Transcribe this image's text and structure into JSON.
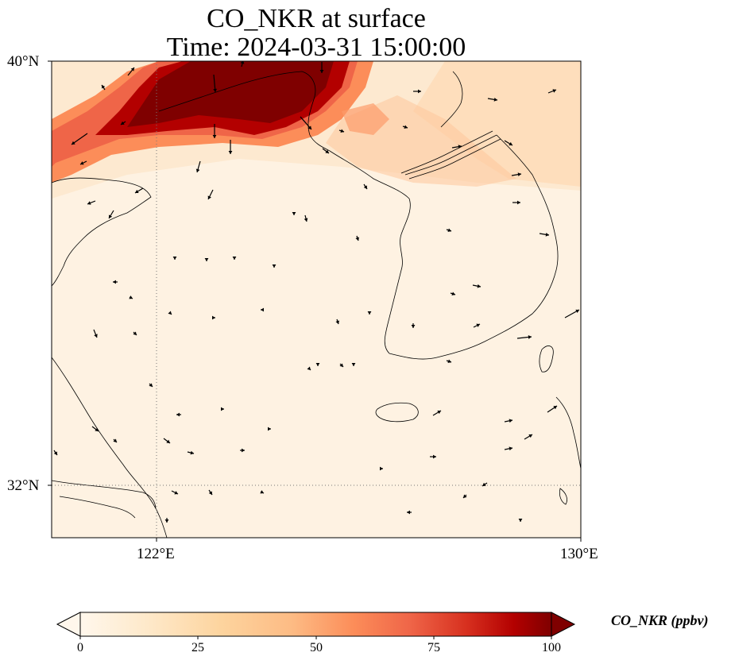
{
  "title": {
    "line1": "CO_NKR at surface",
    "line2": "Time: 2024-03-31 15:00:00"
  },
  "axes": {
    "lat_labels": [
      "40°N",
      "32°N"
    ],
    "lon_labels": [
      "122°E",
      "130°E"
    ],
    "lat_range": [
      31,
      40
    ],
    "lon_range": [
      120,
      130
    ],
    "gridlines": {
      "lat": [
        32
      ],
      "lon": [
        122
      ],
      "style": "dotted"
    }
  },
  "colorbar": {
    "label": "CO_NKR (ppbv)",
    "ticks": [
      "0",
      "25",
      "50",
      "75",
      "100"
    ],
    "range": [
      0,
      100
    ],
    "extend": "both",
    "colormap": "OrRd",
    "colors": [
      "#fff7ec",
      "#fee8c8",
      "#fdd49e",
      "#fdbb84",
      "#fc8d59",
      "#ef6548",
      "#d7301f",
      "#b30000",
      "#7f0000"
    ]
  },
  "chart_data": {
    "type": "heatmap",
    "variable": "CO_NKR",
    "units": "ppbv",
    "plume": {
      "description": "high concentration band over northern area near 38.5–40°N, 121–126°E",
      "peak_value": 100,
      "background_value": 3
    },
    "wind_vectors": "dense arrows over domain"
  }
}
